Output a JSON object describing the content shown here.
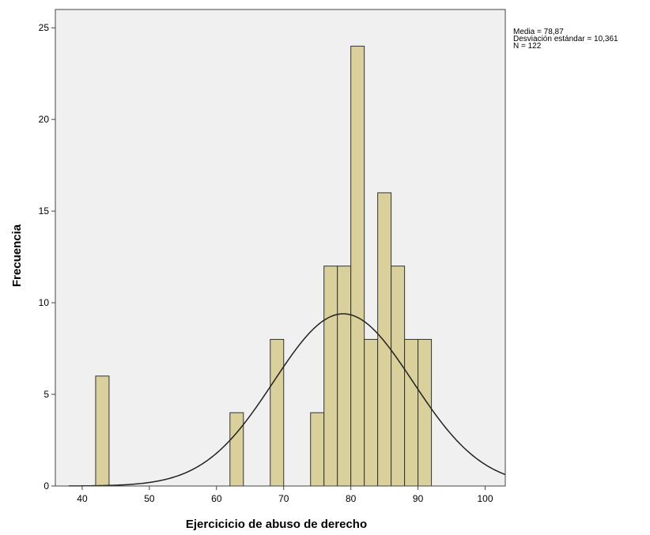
{
  "chart_data": {
    "type": "bar",
    "subtype": "histogram-with-normal-curve",
    "xlabel": "Ejercicicio de abuso de derecho",
    "ylabel": "Frecuencia",
    "xlim": [
      36,
      103
    ],
    "ylim": [
      0,
      26
    ],
    "x_ticks": [
      40,
      50,
      60,
      70,
      80,
      90,
      100
    ],
    "y_ticks": [
      0,
      5,
      10,
      15,
      20,
      25
    ],
    "bin_width": 2,
    "bins": [
      {
        "start": 42,
        "count": 6
      },
      {
        "start": 62,
        "count": 4
      },
      {
        "start": 68,
        "count": 8
      },
      {
        "start": 74,
        "count": 4
      },
      {
        "start": 76,
        "count": 12
      },
      {
        "start": 78,
        "count": 12
      },
      {
        "start": 80,
        "count": 24
      },
      {
        "start": 82,
        "count": 8
      },
      {
        "start": 84,
        "count": 16
      },
      {
        "start": 86,
        "count": 12
      },
      {
        "start": 88,
        "count": 8
      },
      {
        "start": 90,
        "count": 8
      }
    ],
    "normal_curve": {
      "mean": 78.87,
      "sd": 10.361,
      "n": 122
    },
    "grid": false,
    "bar_color": "#d9d09b",
    "plot_background": "#f0f0f0",
    "stats_text": [
      "Media = 78,87",
      "Desviación estándar = 10,361",
      "N = 122"
    ]
  }
}
